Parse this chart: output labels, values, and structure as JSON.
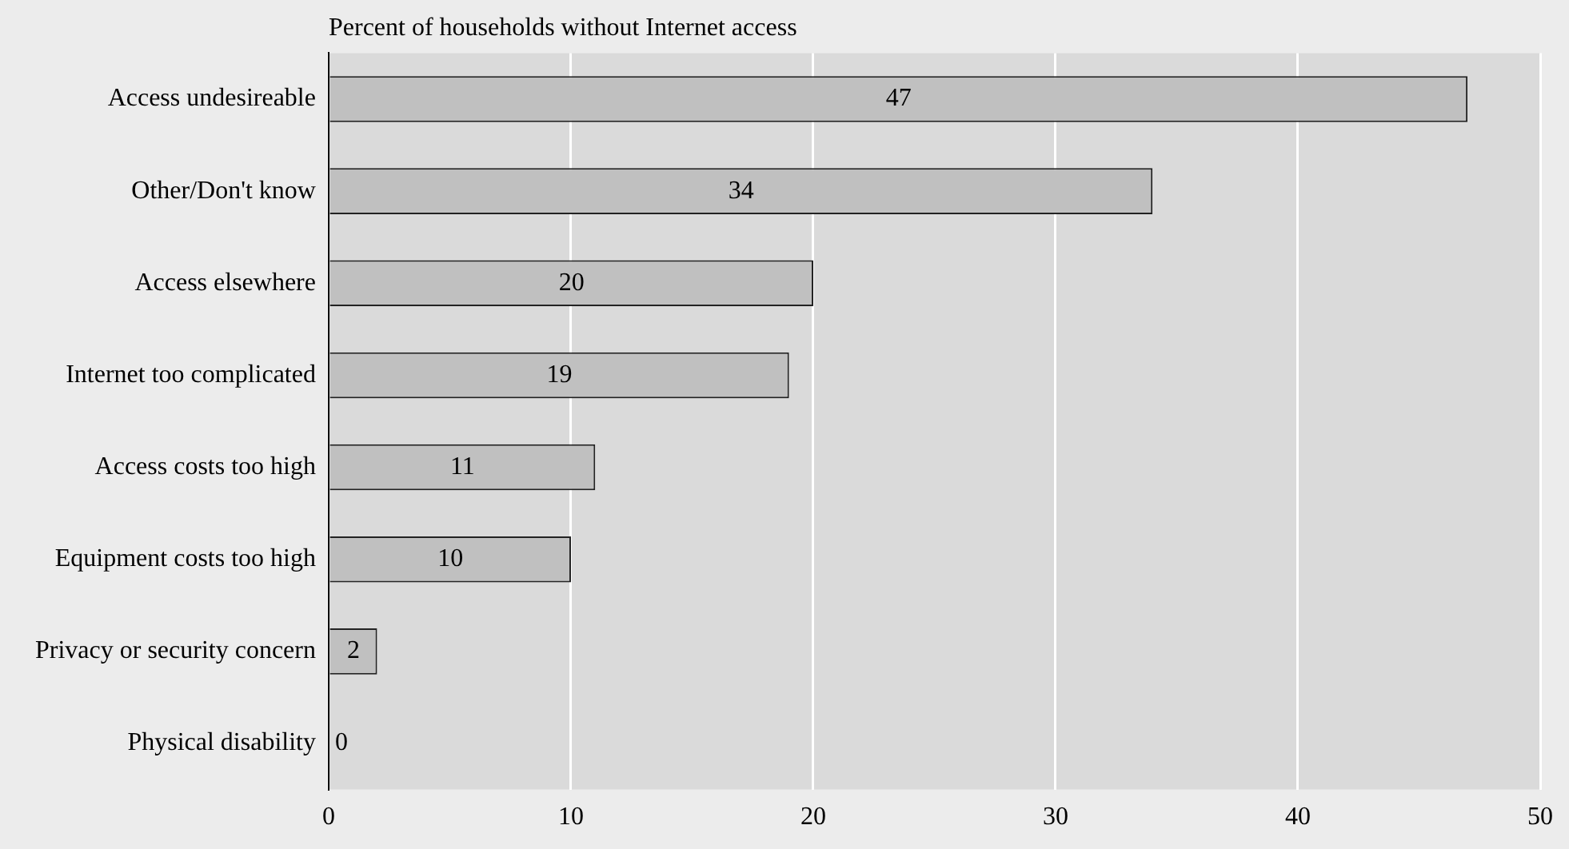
{
  "chart_data": {
    "type": "bar",
    "orientation": "horizontal",
    "title": "Percent of households without Internet access",
    "categories": [
      "Access undesireable",
      "Other/Don't know",
      "Access elsewhere",
      "Internet too complicated",
      "Access costs too high",
      "Equipment costs too high",
      "Privacy or security concern",
      "Physical disability"
    ],
    "values": [
      47,
      34,
      20,
      19,
      11,
      10,
      2,
      0
    ],
    "color": "#c0c0c0",
    "xlim": [
      0,
      50
    ],
    "xticks": [
      0,
      10,
      20,
      30,
      40,
      50
    ],
    "grid": "x",
    "data_labels": true,
    "legend": false
  }
}
